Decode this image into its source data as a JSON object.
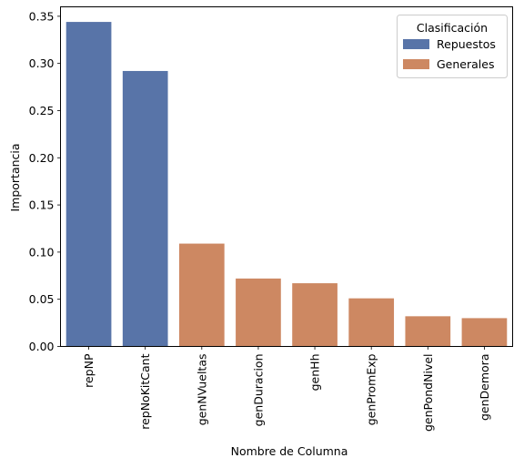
{
  "chart_data": {
    "type": "bar",
    "title": "",
    "xlabel": "Nombre de Columna",
    "ylabel": "Importancia",
    "ylim": [
      0,
      0.36
    ],
    "yticks": [
      0.0,
      0.05,
      0.1,
      0.15,
      0.2,
      0.25,
      0.3,
      0.35
    ],
    "ytick_labels": [
      "0.00",
      "0.05",
      "0.10",
      "0.15",
      "0.20",
      "0.25",
      "0.30",
      "0.35"
    ],
    "categories": [
      "repNP",
      "repNoKitCant",
      "genNVueltas",
      "genDuracion",
      "genHh",
      "genPromExp",
      "genPondNivel",
      "genDemora"
    ],
    "values": [
      0.344,
      0.292,
      0.109,
      0.072,
      0.067,
      0.051,
      0.032,
      0.03
    ],
    "groups": [
      "Repuestos",
      "Repuestos",
      "Generales",
      "Generales",
      "Generales",
      "Generales",
      "Generales",
      "Generales"
    ],
    "grid": false,
    "legend": {
      "title": "Clasificación",
      "placement": "top-right",
      "entries": [
        {
          "label": "Repuestos",
          "color": "#5874a8"
        },
        {
          "label": "Generales",
          "color": "#cd8862"
        }
      ]
    }
  }
}
